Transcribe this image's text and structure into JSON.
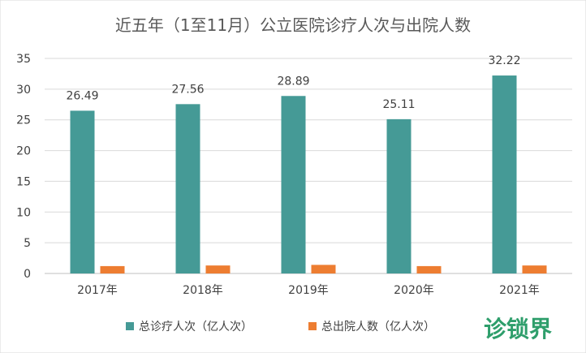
{
  "chart_data": {
    "type": "bar",
    "title": "近五年（1至11月）公立医院诊疗人次与出院人数",
    "categories": [
      "2017年",
      "2018年",
      "2019年",
      "2020年",
      "2021年"
    ],
    "series": [
      {
        "name": "总诊疗人次（亿人次）",
        "color": "#459a96",
        "values": [
          26.49,
          27.56,
          28.89,
          25.11,
          32.22
        ],
        "data_labels": [
          "26.49",
          "27.56",
          "28.89",
          "25.11",
          "32.22"
        ]
      },
      {
        "name": "总出院人数（亿人次）",
        "color": "#ed7d31",
        "values": [
          1.2,
          1.3,
          1.4,
          1.2,
          1.3
        ]
      }
    ],
    "y_ticks": [
      "0",
      "5",
      "10",
      "15",
      "20",
      "25",
      "30",
      "35"
    ],
    "ylim": [
      0,
      35
    ],
    "grid": true,
    "legend_position": "bottom"
  },
  "watermark": "诊锁界"
}
